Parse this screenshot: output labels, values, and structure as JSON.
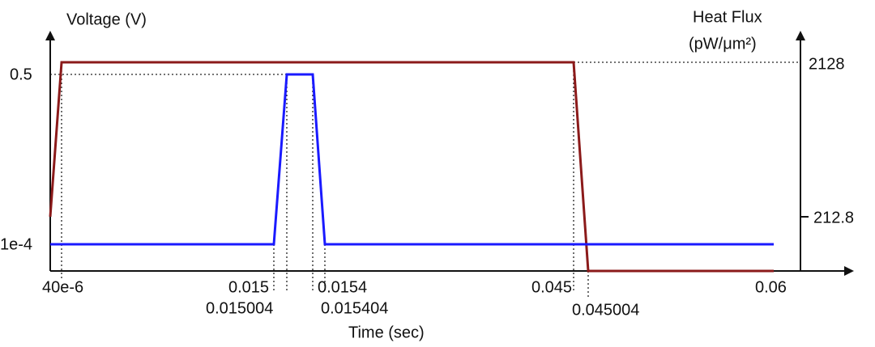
{
  "left_axis": {
    "title": "Voltage (V)",
    "ticks": [
      "0.5",
      "1e-4"
    ]
  },
  "right_axis": {
    "title": "Heat Flux",
    "unit": "(pW/μm²)",
    "ticks": [
      "2128",
      "212.8"
    ]
  },
  "x_axis": {
    "title": "Time (sec)",
    "ticks": [
      "40e-6",
      "0.015",
      "0.015004",
      "0.0154",
      "0.015404",
      "0.045",
      "0.045004",
      "0.06"
    ]
  }
}
